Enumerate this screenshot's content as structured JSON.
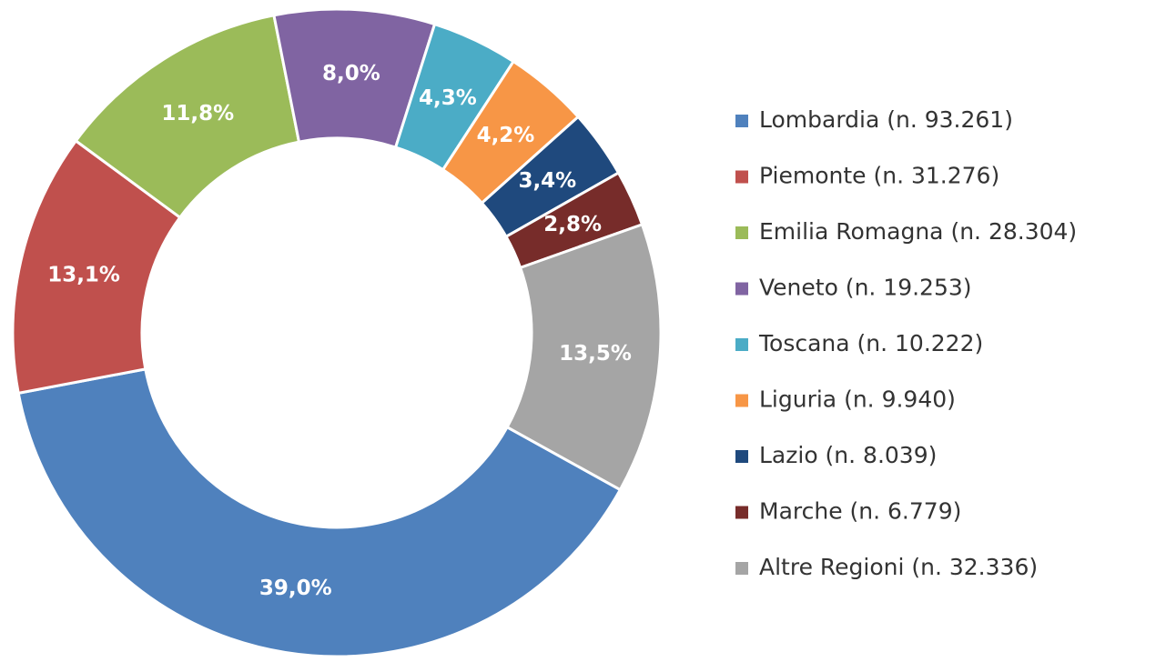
{
  "chart_data": {
    "type": "donut",
    "categories": [
      "Lombardia (n. 93.261)",
      "Piemonte (n. 31.276)",
      "Emilia Romagna (n. 28.304)",
      "Veneto (n. 19.253)",
      "Toscana (n. 10.222)",
      "Liguria (n. 9.940)",
      "Lazio (n. 8.039)",
      "Marche (n. 6.779)",
      "Altre Regioni (n. 32.336)"
    ],
    "values": [
      39.0,
      13.1,
      11.8,
      8.0,
      4.3,
      4.2,
      3.4,
      2.8,
      13.5
    ],
    "value_labels": [
      "39,0%",
      "13,1%",
      "11,8%",
      "8,0%",
      "4,3%",
      "4,2%",
      "3,4%",
      "2,8%",
      "13,5%"
    ],
    "colors": [
      "#4f81bd",
      "#c0504d",
      "#9bbb59",
      "#8064a2",
      "#4bacc6",
      "#f79646",
      "#1f497d",
      "#772c2a",
      "#a5a5a5"
    ],
    "legend": "right"
  }
}
